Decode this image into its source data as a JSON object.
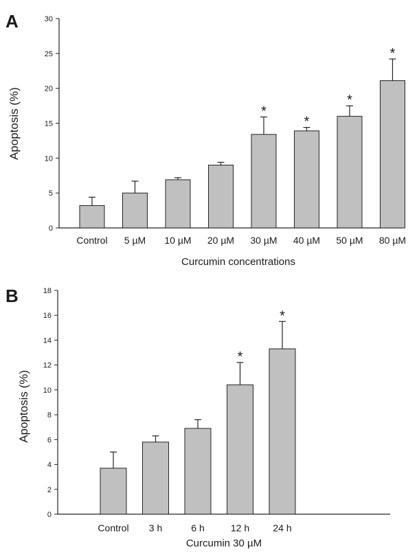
{
  "chart_data": [
    {
      "type": "bar",
      "panel_label": "A",
      "categories": [
        "Control",
        "5 µM",
        "10 µM",
        "20 µM",
        "30 µM",
        "40 µM",
        "50 µM",
        "80 µM"
      ],
      "values": [
        3.2,
        5.0,
        6.9,
        9.0,
        13.4,
        13.9,
        16.0,
        21.1
      ],
      "error_upper": [
        1.2,
        1.7,
        0.3,
        0.4,
        2.5,
        0.5,
        1.5,
        3.1
      ],
      "significance": [
        "",
        "",
        "",
        "",
        "*",
        "*",
        "*",
        "*"
      ],
      "xlabel": "Curcumin concentrations",
      "ylabel": "Apoptosis (%)",
      "ylim": [
        0,
        30
      ],
      "yticks": [
        "0",
        "5",
        "10",
        "15",
        "20",
        "25",
        "30"
      ],
      "bar_color": "#c0c0c0",
      "grid": false
    },
    {
      "type": "bar",
      "panel_label": "B",
      "categories": [
        "Control",
        "3 h",
        "6 h",
        "12 h",
        "24 h"
      ],
      "values": [
        3.7,
        5.8,
        6.9,
        10.4,
        13.3
      ],
      "error_upper": [
        1.3,
        0.5,
        0.7,
        1.8,
        2.2
      ],
      "significance": [
        "",
        "",
        "",
        "*",
        "*"
      ],
      "xlabel": "Curcumin 30 µM",
      "ylabel": "Apoptosis (%)",
      "ylim": [
        0,
        18
      ],
      "yticks": [
        "0",
        "2",
        "4",
        "6",
        "8",
        "10",
        "12",
        "14",
        "16",
        "18"
      ],
      "bar_color": "#c0c0c0",
      "grid": false
    }
  ]
}
